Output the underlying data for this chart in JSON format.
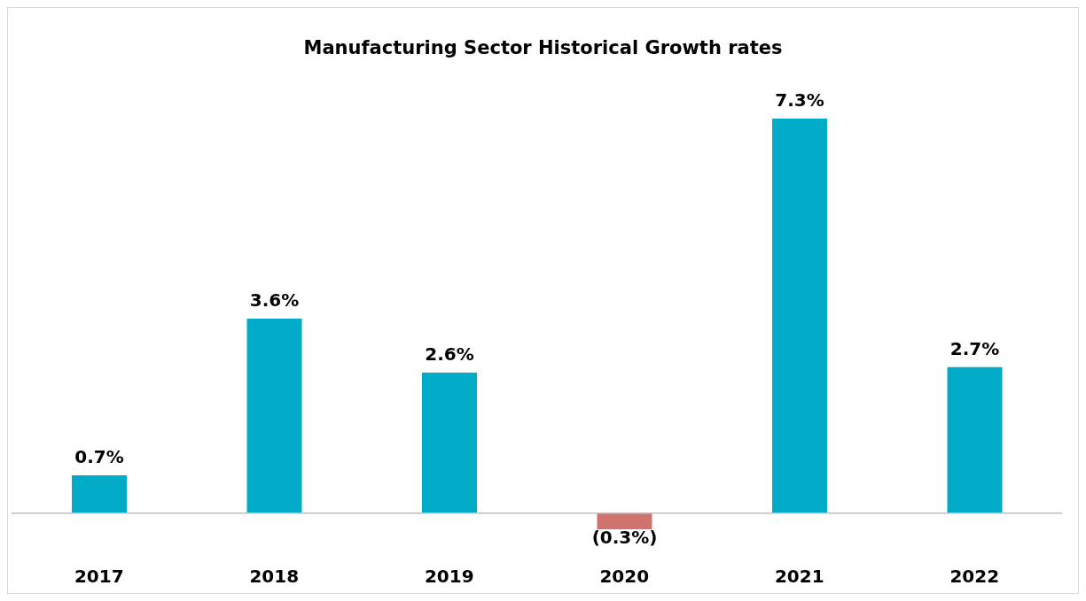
{
  "chart_data": {
    "type": "bar",
    "title": "Manufacturing Sector Historical Growth rates",
    "categories": [
      "2017",
      "2018",
      "2019",
      "2020",
      "2021",
      "2022"
    ],
    "values": [
      0.7,
      3.6,
      2.6,
      -0.3,
      7.3,
      2.7
    ],
    "colors": [
      "#00abc8",
      "#00abc8",
      "#00abc8",
      "#d0736f",
      "#00abc8",
      "#00abc8"
    ],
    "value_labels": [
      "0.7%",
      "3.6%",
      "2.6%",
      "(0.3%)",
      "7.3%",
      "2.7%"
    ],
    "grid": false,
    "legend": false
  }
}
